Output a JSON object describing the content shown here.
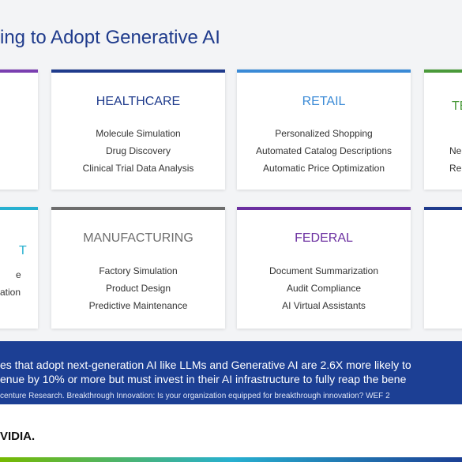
{
  "header": {
    "title": "ing to Adopt Generative AI"
  },
  "cards": [
    {
      "heading": "HEALTHCARE",
      "items": [
        "Molecule Simulation",
        "Drug Discovery",
        "Clinical Trial Data Analysis"
      ]
    },
    {
      "heading": "RETAIL",
      "items": [
        "Personalized Shopping",
        "Automated Catalog Descriptions",
        "Automatic Price Optimization"
      ]
    },
    {
      "heading": "TE",
      "items": [
        "Ne",
        "Re"
      ]
    },
    {
      "heading": "T",
      "items": [
        "e",
        "ation"
      ]
    },
    {
      "heading": "MANUFACTURING",
      "items": [
        "Factory Simulation",
        "Product Design",
        "Predictive Maintenance"
      ]
    },
    {
      "heading": "FEDERAL",
      "items": [
        "Document Summarization",
        "Audit Compliance",
        "AI Virtual Assistants"
      ]
    }
  ],
  "banner": {
    "lines": [
      "es that adopt next-generation AI like LLMs and Generative AI are 2.6X more likely to",
      "enue by 10% or more but must invest in their AI infrastructure to fully reap the bene"
    ],
    "source": "centure Research. Breakthrough Innovation: Is your organization equipped for breakthrough innovation? WEF 2"
  },
  "footer": {
    "logo": "VIDIA."
  }
}
